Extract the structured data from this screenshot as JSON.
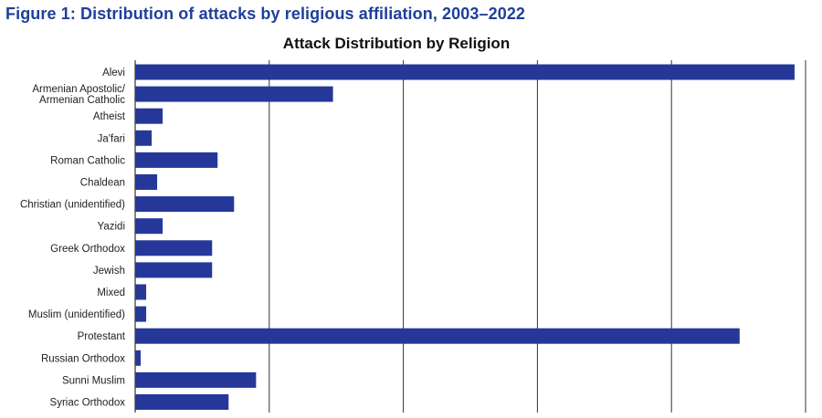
{
  "figure_title": "Figure 1: Distribution of attacks by religious affiliation, 2003–2022",
  "colors": {
    "bar": "#25389a",
    "figure_title": "#1f3f99",
    "grid": "#333333"
  },
  "chart_data": {
    "type": "bar",
    "orientation": "horizontal",
    "title": "Attack Distribution by Religion",
    "xlabel": "",
    "ylabel": "",
    "xlim": [
      0,
      61
    ],
    "gridlines_x": [
      0,
      12.2,
      24.4,
      36.6,
      48.8,
      61
    ],
    "grid": true,
    "categories": [
      [
        "Alevi"
      ],
      [
        "Armenian Apostolic/",
        "Armenian Catholic"
      ],
      [
        "Atheist"
      ],
      [
        "Ja'fari"
      ],
      [
        "Roman Catholic"
      ],
      [
        "Chaldean"
      ],
      [
        "Christian (unidentified)"
      ],
      [
        "Yazidi"
      ],
      [
        "Greek Orthodox"
      ],
      [
        "Jewish"
      ],
      [
        "Mixed"
      ],
      [
        "Muslim (unidentified)"
      ],
      [
        "Protestant"
      ],
      [
        "Russian Orthodox"
      ],
      [
        "Sunni Muslim"
      ],
      [
        "Syriac Orthodox"
      ]
    ],
    "values": [
      60,
      18,
      2.5,
      1.5,
      7.5,
      2,
      9,
      2.5,
      7,
      7,
      1,
      1,
      55,
      0.5,
      11,
      8.5
    ]
  }
}
